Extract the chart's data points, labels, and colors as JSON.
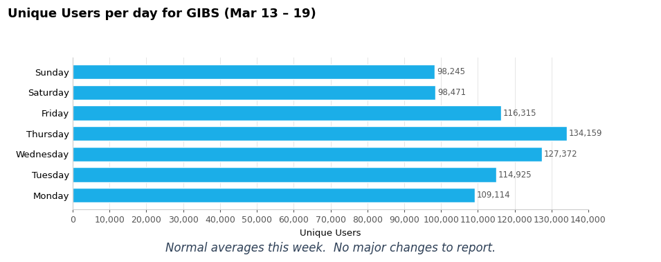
{
  "title": "Unique Users per day for GIBS (Mar 13 – 19)",
  "days": [
    "Monday",
    "Tuesday",
    "Wednesday",
    "Thursday",
    "Friday",
    "Saturday",
    "Sunday"
  ],
  "values": [
    109114,
    114925,
    127372,
    134159,
    116315,
    98471,
    98245
  ],
  "bar_color": "#1baee8",
  "xlabel": "Unique Users",
  "xlim": [
    0,
    140000
  ],
  "xticks": [
    0,
    10000,
    20000,
    30000,
    40000,
    50000,
    60000,
    70000,
    80000,
    90000,
    100000,
    110000,
    120000,
    130000,
    140000
  ],
  "annotation_color": "#555555",
  "title_fontsize": 13,
  "label_fontsize": 9.5,
  "tick_fontsize": 9,
  "annotation_fontsize": 8.5,
  "footer_text": "Normal averages this week.  No major changes to report.",
  "footer_fontsize": 12,
  "background_color": "#ffffff"
}
